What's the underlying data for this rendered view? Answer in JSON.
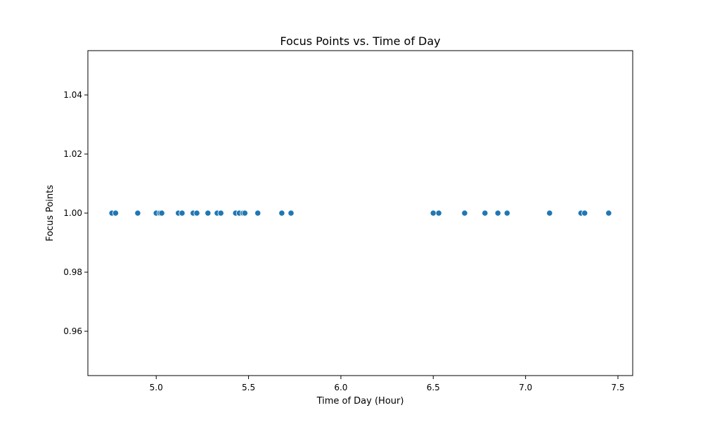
{
  "chart_data": {
    "type": "scatter",
    "title": "Focus Points vs. Time of Day",
    "xlabel": "Time of Day (Hour)",
    "ylabel": "Focus Points",
    "xlim": [
      4.63,
      7.58
    ],
    "ylim": [
      0.945,
      1.055
    ],
    "xticks": [
      5.0,
      5.5,
      6.0,
      6.5,
      7.0,
      7.5
    ],
    "xtick_labels": [
      "5.0",
      "5.5",
      "6.0",
      "6.5",
      "7.0",
      "7.5"
    ],
    "yticks": [
      0.96,
      0.98,
      1.0,
      1.02,
      1.04
    ],
    "ytick_labels": [
      "0.96",
      "0.98",
      "1.00",
      "1.02",
      "1.04"
    ],
    "grid": false,
    "marker_color": "#1f77b4",
    "points": {
      "x": [
        4.76,
        4.78,
        4.9,
        5.0,
        5.02,
        5.03,
        5.12,
        5.14,
        5.2,
        5.22,
        5.28,
        5.33,
        5.35,
        5.43,
        5.45,
        5.47,
        5.48,
        5.55,
        5.68,
        5.73,
        6.5,
        6.53,
        6.67,
        6.78,
        6.85,
        6.9,
        7.13,
        7.3,
        7.32,
        7.45
      ],
      "y": [
        1,
        1,
        1,
        1,
        1,
        1,
        1,
        1,
        1,
        1,
        1,
        1,
        1,
        1,
        1,
        1,
        1,
        1,
        1,
        1,
        1,
        1,
        1,
        1,
        1,
        1,
        1,
        1,
        1,
        1
      ]
    }
  }
}
